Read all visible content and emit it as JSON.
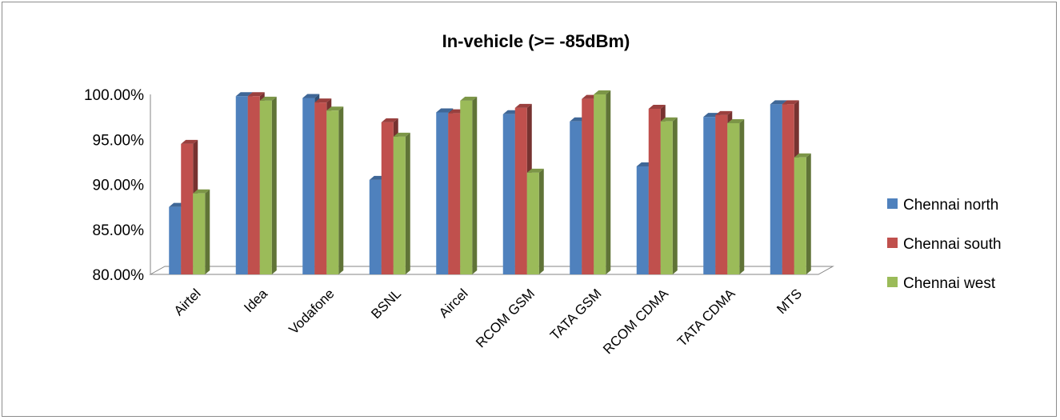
{
  "chart_data": {
    "type": "bar",
    "title": "In-vehicle (>= -85dBm)",
    "xlabel": "",
    "ylabel": "",
    "ylim": [
      80,
      100
    ],
    "yticks": [
      80,
      85,
      90,
      95,
      100
    ],
    "ytick_labels": [
      "80.00%",
      "85.00%",
      "90.00%",
      "95.00%",
      "100.00%"
    ],
    "grid": false,
    "legend_position": "right",
    "categories": [
      "Airtel",
      "Idea",
      "Vodafone",
      "BSNL",
      "Aircel",
      "RCOM GSM",
      "TATA GSM",
      "RCOM CDMA",
      "TATA CDMA",
      "MTS"
    ],
    "series": [
      {
        "name": "Chennai north",
        "color": "#4f81bd",
        "values": [
          87.5,
          99.8,
          99.6,
          90.5,
          98.0,
          97.8,
          97.0,
          92.0,
          97.5,
          98.9
        ]
      },
      {
        "name": "Chennai south",
        "color": "#c0504d",
        "values": [
          94.5,
          99.8,
          99.1,
          96.9,
          97.9,
          98.5,
          99.5,
          98.4,
          97.7,
          98.9
        ]
      },
      {
        "name": "Chennai west",
        "color": "#9bbb59",
        "values": [
          89.0,
          99.3,
          98.2,
          95.3,
          99.3,
          91.3,
          100.0,
          97.0,
          96.8,
          93.0
        ]
      }
    ]
  }
}
